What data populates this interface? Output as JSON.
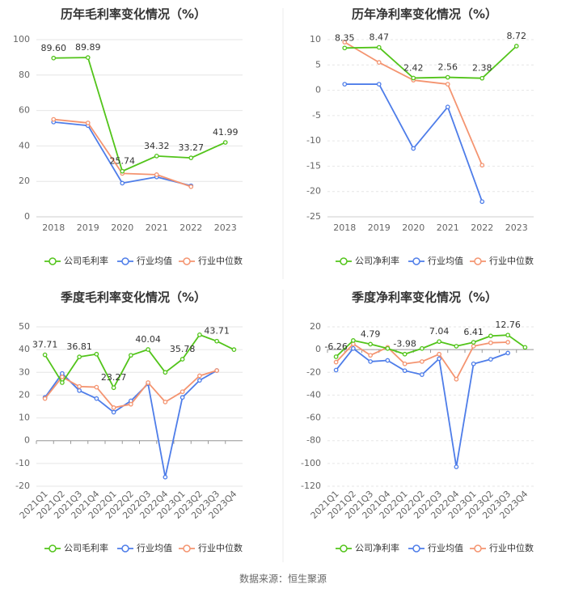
{
  "source": "数据来源：恒生聚源",
  "colors": {
    "company": "#52c41a",
    "avg": "#4e7de9",
    "median": "#f49470"
  },
  "chart_data": [
    {
      "id": "annual-gross",
      "type": "line",
      "title": "历年毛利率变化情况（%）",
      "categories": [
        "2018",
        "2019",
        "2020",
        "2021",
        "2022",
        "2023"
      ],
      "ylim": [
        0,
        100
      ],
      "yticks": [
        0,
        20,
        40,
        60,
        80,
        100
      ],
      "series": [
        {
          "name": "公司毛利率",
          "key": "company",
          "values": [
            89.6,
            89.89,
            25.74,
            34.32,
            33.27,
            41.99
          ],
          "labels": [
            "89.60",
            "89.89",
            "25.74",
            "34.32",
            "33.27",
            "41.99"
          ]
        },
        {
          "name": "行业均值",
          "key": "avg",
          "values": [
            53.5,
            51.5,
            19.0,
            22.5,
            17.5,
            null
          ]
        },
        {
          "name": "行业中位数",
          "key": "median",
          "values": [
            55.0,
            53.0,
            24.5,
            23.8,
            17.0,
            null
          ]
        }
      ]
    },
    {
      "id": "annual-net",
      "type": "line",
      "title": "历年净利率变化情况（%）",
      "categories": [
        "2018",
        "2019",
        "2020",
        "2021",
        "2022",
        "2023"
      ],
      "ylim": [
        -25,
        10
      ],
      "yticks": [
        -25,
        -20,
        -15,
        -10,
        -5,
        0,
        5,
        10
      ],
      "series": [
        {
          "name": "公司净利率",
          "key": "company",
          "values": [
            8.35,
            8.47,
            2.42,
            2.56,
            2.38,
            8.72
          ],
          "labels": [
            "8.35",
            "8.47",
            "2.42",
            "2.56",
            "2.38",
            "8.72"
          ]
        },
        {
          "name": "行业均值",
          "key": "avg",
          "values": [
            1.2,
            1.2,
            -11.5,
            -3.3,
            -22.0,
            null
          ]
        },
        {
          "name": "行业中位数",
          "key": "median",
          "values": [
            9.5,
            5.5,
            2.0,
            1.2,
            -14.8,
            null
          ]
        }
      ]
    },
    {
      "id": "quarterly-gross",
      "type": "line",
      "title": "季度毛利率变化情况（%）",
      "categories": [
        "2021Q1",
        "2021Q2",
        "2021Q3",
        "2021Q4",
        "2022Q1",
        "2022Q2",
        "2022Q3",
        "2022Q4",
        "2023Q1",
        "2023Q2",
        "2023Q3",
        "2023Q4"
      ],
      "ylim": [
        -20,
        50
      ],
      "yticks": [
        -20,
        -10,
        0,
        10,
        20,
        30,
        40,
        50
      ],
      "series": [
        {
          "name": "公司毛利率",
          "key": "company",
          "values": [
            37.71,
            25.5,
            36.81,
            38.0,
            23.27,
            37.5,
            40.04,
            30.0,
            35.78,
            46.5,
            43.71,
            40.0
          ],
          "labels": [
            "37.71",
            "",
            "36.81",
            "",
            "23.27",
            "",
            "40.04",
            "",
            "35.78",
            "",
            "43.71",
            ""
          ]
        },
        {
          "name": "行业均值",
          "key": "avg",
          "values": [
            19.0,
            29.5,
            22.0,
            18.5,
            12.5,
            17.5,
            25.0,
            -16.0,
            19.0,
            26.5,
            30.8,
            null
          ]
        },
        {
          "name": "行业中位数",
          "key": "median",
          "values": [
            18.5,
            28.0,
            23.8,
            23.5,
            14.5,
            16.0,
            25.5,
            17.0,
            21.5,
            28.5,
            30.8,
            null
          ]
        }
      ]
    },
    {
      "id": "quarterly-net",
      "type": "line",
      "title": "季度净利率变化情况（%）",
      "categories": [
        "2021Q1",
        "2021Q2",
        "2021Q3",
        "2021Q4",
        "2022Q1",
        "2022Q2",
        "2022Q3",
        "2022Q4",
        "2023Q1",
        "2023Q2",
        "2023Q3",
        "2023Q4"
      ],
      "ylim": [
        -120,
        20
      ],
      "yticks": [
        -120,
        -100,
        -80,
        -60,
        -40,
        -20,
        0,
        20
      ],
      "series": [
        {
          "name": "公司净利率",
          "key": "company",
          "values": [
            -6.26,
            8.0,
            4.79,
            1.0,
            -3.98,
            1.0,
            7.04,
            3.0,
            6.41,
            12.0,
            12.76,
            2.0
          ],
          "labels": [
            "-6.26",
            "",
            "4.79",
            "",
            "-3.98",
            "",
            "7.04",
            "",
            "6.41",
            "",
            "12.76",
            ""
          ]
        },
        {
          "name": "行业均值",
          "key": "avg",
          "values": [
            -18.0,
            1.0,
            -10.5,
            -9.5,
            -18.5,
            -22.0,
            -8.0,
            -103.0,
            -12.5,
            -8.5,
            -3.0,
            null
          ]
        },
        {
          "name": "行业中位数",
          "key": "median",
          "values": [
            -11.0,
            5.0,
            -5.0,
            2.0,
            -12.5,
            -10.5,
            -4.0,
            -26.0,
            3.0,
            6.0,
            6.5,
            null
          ]
        }
      ]
    }
  ]
}
